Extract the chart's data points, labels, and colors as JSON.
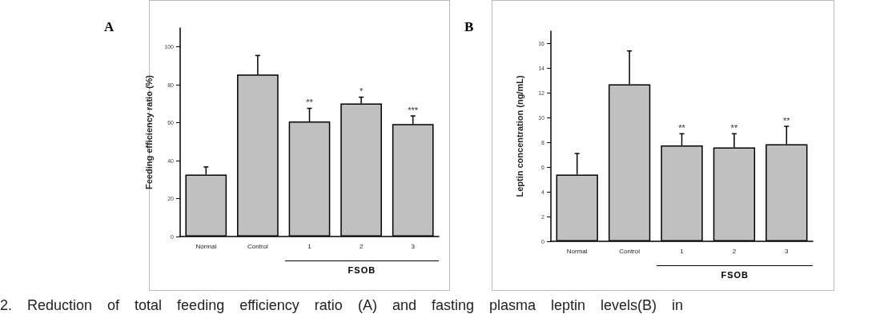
{
  "chart_data": [
    {
      "type": "bar",
      "title": "A",
      "ylabel": "Feeding efficiency ratio (%)",
      "categories": [
        "Normal",
        "Control",
        "1",
        "2",
        "3"
      ],
      "color": "#c0c0c0",
      "values": [
        32.7,
        85.4,
        60.7,
        70.2,
        59.3
      ],
      "errors": [
        [
          32.7,
          36.7
        ],
        [
          85.4,
          95.5
        ],
        [
          60.7,
          67.6
        ],
        [
          70.2,
          73.5
        ],
        [
          59.3,
          63.6
        ]
      ],
      "ylim": [
        0,
        110
      ],
      "yticks": [
        0,
        20,
        40,
        60,
        80,
        100
      ],
      "grid": false,
      "annotations": [
        {
          "text": "**",
          "x": "1",
          "y": 67.6
        },
        {
          "text": "*",
          "x": "2",
          "y": 73.5
        },
        {
          "text": "***",
          "x": "3",
          "y": 63.6
        },
        "FSOB",
        "2. Reduction of total feeding efficiency ratio (A) and fasting plasma leptin levels(B) in"
      ]
    },
    {
      "type": "bar",
      "title": "B",
      "ylabel": "Leptin concentration (ng/mL)",
      "categories": [
        "Normal",
        "Control",
        "1",
        "2",
        "3"
      ],
      "color": "#c0c0c0",
      "values": [
        5.4,
        12.7,
        7.75,
        7.6,
        7.85
      ],
      "errors": [
        [
          5.4,
          7.1
        ],
        [
          12.7,
          15.4
        ],
        [
          7.75,
          8.7
        ],
        [
          7.6,
          8.7
        ],
        [
          7.85,
          9.3
        ]
      ],
      "ylim": [
        0,
        17
      ],
      "yticks": [
        0,
        2,
        4,
        6,
        8,
        10,
        12,
        14,
        16
      ],
      "grid": false,
      "annotations": [
        {
          "text": "**",
          "x": "1",
          "y": 8.7
        },
        {
          "text": "**",
          "x": "2",
          "y": 8.7
        },
        {
          "text": "**",
          "x": "3",
          "y": 9.3
        },
        "FSOB"
      ]
    }
  ]
}
